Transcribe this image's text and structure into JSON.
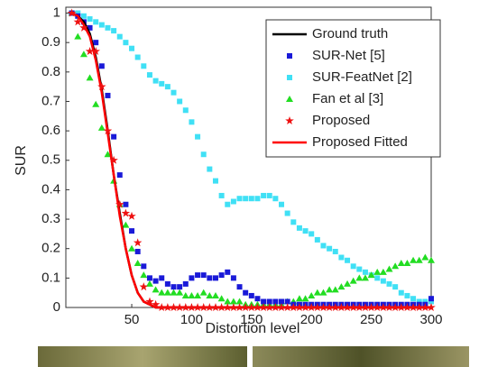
{
  "chart_data": {
    "type": "line",
    "xlabel": "Distortion level",
    "ylabel": "SUR",
    "x": [
      0,
      5,
      10,
      15,
      20,
      25,
      30,
      35,
      40,
      45,
      50,
      55,
      60,
      65,
      70,
      75,
      80,
      85,
      90,
      95,
      100,
      105,
      110,
      115,
      120,
      125,
      130,
      135,
      140,
      145,
      150,
      155,
      160,
      165,
      170,
      175,
      180,
      185,
      190,
      195,
      200,
      205,
      210,
      215,
      220,
      225,
      230,
      235,
      240,
      245,
      250,
      255,
      260,
      265,
      270,
      275,
      280,
      285,
      290,
      295,
      300
    ],
    "xlim": [
      -5,
      300
    ],
    "ylim": [
      0,
      1.02
    ],
    "xticks": [
      50,
      100,
      150,
      200,
      250,
      300
    ],
    "yticks": [
      0,
      0.1,
      0.2,
      0.3,
      0.4,
      0.5,
      0.6,
      0.7,
      0.8,
      0.9,
      1
    ],
    "legend": "upper right",
    "series": [
      {
        "name": "Ground truth",
        "color": "#000000",
        "marker": "line",
        "values": [
          1,
          0.99,
          0.97,
          0.93,
          0.85,
          0.74,
          0.6,
          0.45,
          0.32,
          0.2,
          0.11,
          0.05,
          0.02,
          0.01,
          0,
          0,
          0,
          0,
          0,
          0,
          0,
          0,
          0,
          0,
          0,
          0,
          0,
          0,
          0,
          0,
          0,
          0,
          0,
          0,
          0,
          0,
          0,
          0,
          0,
          0,
          0,
          0,
          0,
          0,
          0,
          0,
          0,
          0,
          0,
          0,
          0,
          0,
          0,
          0,
          0,
          0,
          0,
          0,
          0,
          0,
          0
        ]
      },
      {
        "name": "SUR-Net [5]",
        "color": "#1a1ad8",
        "marker": "square",
        "values": [
          1,
          0.99,
          0.97,
          0.95,
          0.9,
          0.82,
          0.72,
          0.58,
          0.45,
          0.35,
          0.26,
          0.19,
          0.14,
          0.1,
          0.09,
          0.1,
          0.08,
          0.07,
          0.07,
          0.08,
          0.1,
          0.11,
          0.11,
          0.1,
          0.1,
          0.11,
          0.12,
          0.1,
          0.07,
          0.05,
          0.04,
          0.03,
          0.02,
          0.02,
          0.02,
          0.02,
          0.02,
          0.01,
          0.01,
          0.01,
          0.01,
          0.01,
          0.01,
          0.01,
          0.01,
          0.01,
          0.01,
          0.01,
          0.01,
          0.01,
          0.01,
          0.01,
          0.01,
          0.01,
          0.01,
          0.01,
          0.01,
          0.01,
          0.01,
          0.01,
          0.03
        ]
      },
      {
        "name": "SUR-FeatNet [2]",
        "color": "#40e0f5",
        "marker": "square",
        "values": [
          1,
          1,
          0.99,
          0.98,
          0.97,
          0.96,
          0.95,
          0.94,
          0.92,
          0.9,
          0.88,
          0.85,
          0.82,
          0.79,
          0.77,
          0.76,
          0.75,
          0.73,
          0.7,
          0.67,
          0.63,
          0.58,
          0.52,
          0.47,
          0.43,
          0.38,
          0.35,
          0.36,
          0.37,
          0.37,
          0.37,
          0.37,
          0.38,
          0.38,
          0.37,
          0.35,
          0.32,
          0.29,
          0.27,
          0.26,
          0.25,
          0.23,
          0.21,
          0.2,
          0.19,
          0.17,
          0.16,
          0.14,
          0.13,
          0.12,
          0.11,
          0.1,
          0.09,
          0.08,
          0.07,
          0.05,
          0.04,
          0.03,
          0.02,
          0.02,
          0.02
        ]
      },
      {
        "name": "Fan et al [3]",
        "color": "#22dd22",
        "marker": "triangle",
        "values": [
          1,
          0.92,
          0.86,
          0.78,
          0.69,
          0.61,
          0.52,
          0.43,
          0.35,
          0.28,
          0.2,
          0.15,
          0.11,
          0.08,
          0.06,
          0.05,
          0.05,
          0.05,
          0.05,
          0.04,
          0.04,
          0.04,
          0.05,
          0.04,
          0.04,
          0.03,
          0.02,
          0.02,
          0.02,
          0.01,
          0.01,
          0.01,
          0.01,
          0.01,
          0.01,
          0.01,
          0.02,
          0.02,
          0.03,
          0.03,
          0.04,
          0.05,
          0.05,
          0.06,
          0.06,
          0.07,
          0.08,
          0.09,
          0.1,
          0.1,
          0.11,
          0.12,
          0.12,
          0.13,
          0.14,
          0.15,
          0.15,
          0.16,
          0.16,
          0.17,
          0.16
        ]
      },
      {
        "name": "Proposed",
        "color": "#ee1111",
        "marker": "star",
        "values": [
          1,
          0.97,
          0.95,
          0.87,
          0.87,
          0.75,
          0.6,
          0.5,
          0.35,
          0.32,
          0.31,
          0.22,
          0.07,
          0.02,
          0.01,
          0,
          0,
          0,
          0,
          0,
          0,
          0,
          0,
          0,
          0,
          0,
          0,
          0,
          0,
          0,
          0,
          0,
          0,
          0,
          0,
          0,
          0,
          0,
          0,
          0,
          0,
          0,
          0,
          0,
          0,
          0,
          0,
          0,
          0,
          0,
          0,
          0,
          0,
          0,
          0,
          0,
          0,
          0,
          0,
          0,
          0
        ]
      },
      {
        "name": "Proposed Fitted",
        "color": "#ff0000",
        "marker": "line",
        "values": [
          1,
          0.99,
          0.96,
          0.92,
          0.84,
          0.73,
          0.59,
          0.45,
          0.31,
          0.2,
          0.11,
          0.05,
          0.02,
          0.01,
          0,
          0,
          0,
          0,
          0,
          0,
          0,
          0,
          0,
          0,
          0,
          0,
          0,
          0,
          0,
          0,
          0,
          0,
          0,
          0,
          0,
          0,
          0,
          0,
          0,
          0,
          0,
          0,
          0,
          0,
          0,
          0,
          0,
          0,
          0,
          0,
          0,
          0,
          0,
          0,
          0,
          0,
          0,
          0,
          0,
          0,
          0
        ]
      }
    ]
  }
}
